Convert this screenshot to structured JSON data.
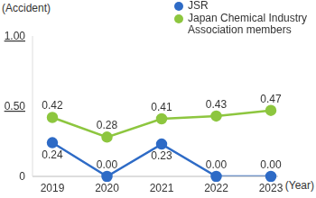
{
  "chart_data": {
    "type": "line",
    "y_label": "(Accident)",
    "x_label": "(Year)",
    "categories": [
      "2019",
      "2020",
      "2021",
      "2022",
      "2023"
    ],
    "series": [
      {
        "name": "JSR",
        "color": "#2e6bc6",
        "marker": "circle",
        "values": [
          0.24,
          0,
          0.23,
          0,
          0
        ],
        "value_labels": [
          "0.24",
          "0.00",
          "0.23",
          "0.00",
          "0.00"
        ]
      },
      {
        "name": "Japan Chemical Industry Association members",
        "color": "#8dc63f",
        "marker": "circle",
        "values": [
          0.42,
          0.28,
          0.41,
          0.43,
          0.47
        ]
      }
    ],
    "ylim": [
      0,
      1
    ],
    "yticks": [
      0,
      {
        "value": 0.5,
        "label": "0.50"
      },
      {
        "value": 1,
        "label": "1.00"
      }
    ],
    "data_labels": true,
    "legend": "upper right",
    "grid": false
  }
}
